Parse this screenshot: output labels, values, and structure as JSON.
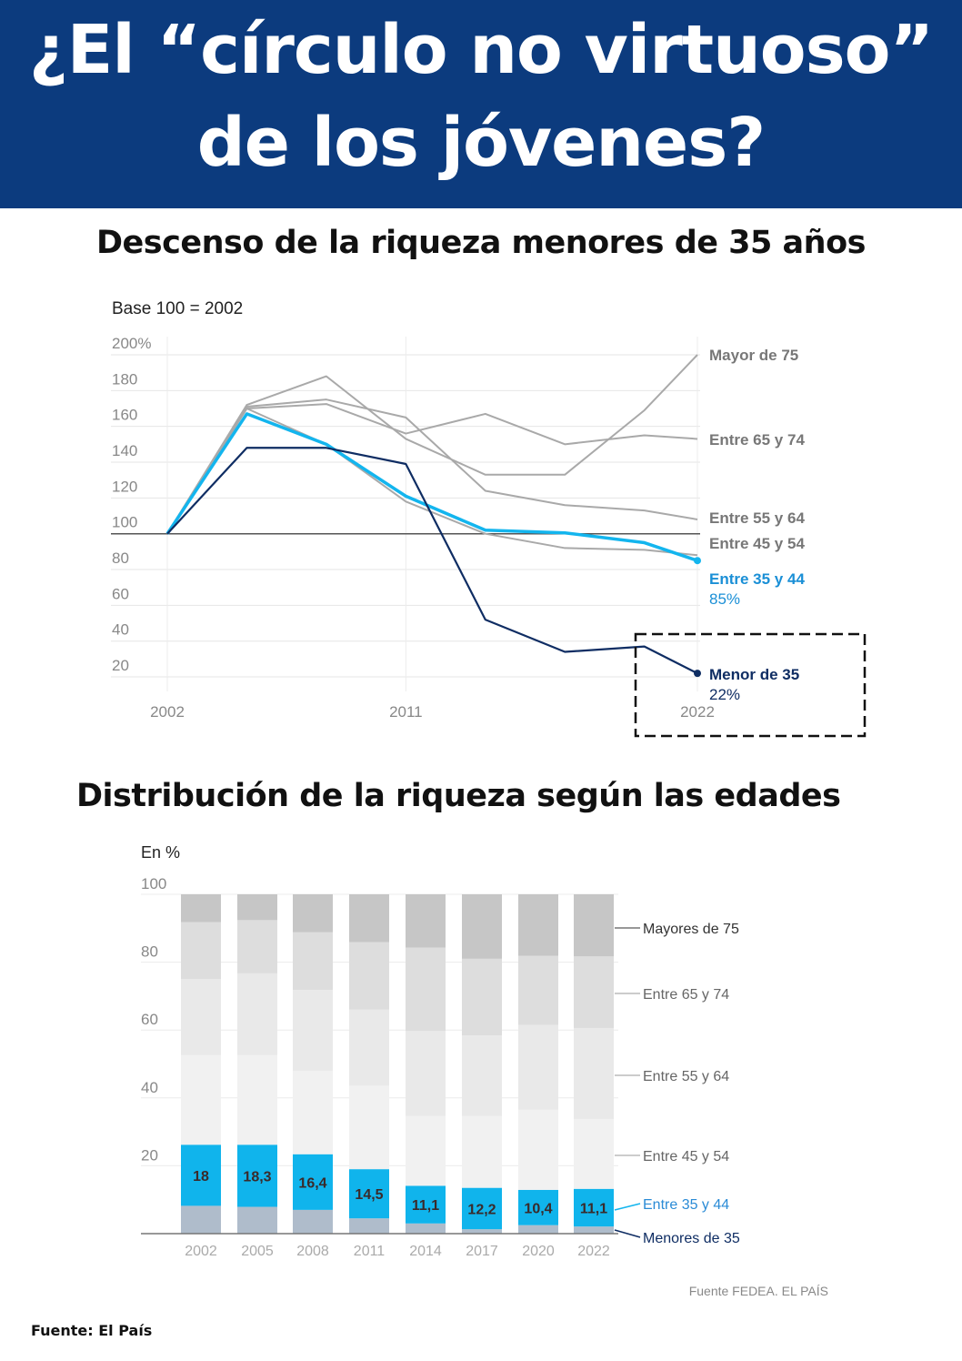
{
  "header": {
    "line1": "¿El “círculo no virtuoso”",
    "line2": "de los jóvenes?",
    "bg_color": "#0c3b7e"
  },
  "footer": {
    "source": "Fuente: El País"
  },
  "chart_data": [
    {
      "type": "line",
      "title": "Descenso de la riqueza menores de 35 años",
      "subtitle": "Base 100 = 2002",
      "x": [
        2002,
        2005,
        2008,
        2011,
        2014,
        2017,
        2020,
        2022
      ],
      "x_tick_labels": [
        "2002",
        "2011",
        "2022"
      ],
      "x_ticks": [
        2002,
        2011,
        2022
      ],
      "y_tick_labels": [
        "200%",
        "180",
        "160",
        "140",
        "120",
        "100",
        "80",
        "60",
        "40",
        "20"
      ],
      "y_ticks": [
        200,
        180,
        160,
        140,
        120,
        100,
        80,
        60,
        40,
        20
      ],
      "ylim": [
        10,
        205
      ],
      "baseline": 100,
      "grid": true,
      "series": [
        {
          "name": "Mayor de 75",
          "color": "#a9a9a9",
          "label_color": "#777777",
          "values": [
            100,
            172,
            188,
            153,
            133,
            133,
            169,
            200
          ]
        },
        {
          "name": "Entre 65 y 74",
          "color": "#a9a9a9",
          "label_color": "#777777",
          "values": [
            100,
            170,
            172.5,
            156,
            167,
            150,
            155,
            153
          ]
        },
        {
          "name": "Entre 55 y 64",
          "color": "#a9a9a9",
          "label_color": "#777777",
          "values": [
            100,
            171,
            175,
            165,
            124,
            116,
            113,
            108
          ]
        },
        {
          "name": "Entre 45 y 54",
          "color": "#a9a9a9",
          "label_color": "#777777",
          "values": [
            100,
            170,
            150,
            118,
            100,
            92,
            91,
            88
          ]
        },
        {
          "name": "Entre 35 y 44",
          "color": "#13b5ee",
          "label_color": "#1a8fd6",
          "end_label": "85%",
          "values": [
            100,
            167,
            150,
            121,
            102,
            100.5,
            95,
            85
          ]
        },
        {
          "name": "Menor de 35",
          "color": "#0f2d63",
          "label_color": "#0f2d63",
          "end_label": "22%",
          "values": [
            100,
            148,
            148,
            139,
            52,
            34,
            37,
            22
          ]
        }
      ],
      "annotation": "dashed box highlighting Menor de 35 in 2022"
    },
    {
      "type": "bar",
      "stacked": true,
      "title": "Distribución de la riqueza según las edades",
      "subtitle": "En %",
      "source": "Fuente FEDEA. EL PAÍS",
      "categories": [
        "2002",
        "2005",
        "2008",
        "2011",
        "2014",
        "2017",
        "2020",
        "2022"
      ],
      "y_tick_labels": [
        "100",
        "80",
        "60",
        "40",
        "20"
      ],
      "y_ticks": [
        100,
        80,
        60,
        40,
        20
      ],
      "ylim": [
        0,
        100
      ],
      "series": [
        {
          "name": "Menores de 35",
          "color": "#afbccb",
          "label_color": "#0f2d63",
          "values": [
            8.2,
            7.9,
            7.0,
            4.5,
            3.0,
            1.3,
            2.5,
            2.1
          ]
        },
        {
          "name": "Entre 35 y 44",
          "color": "#10b4ec",
          "label_color": "#2a8bd6",
          "values": [
            18,
            18.3,
            16.4,
            14.5,
            11.1,
            12.2,
            10.4,
            11.1
          ],
          "data_labels": [
            "18",
            "18,3",
            "16,4",
            "14,5",
            "11,1",
            "12,2",
            "10,4",
            "11,1"
          ]
        },
        {
          "name": "Entre 45 y 54",
          "color": "#f1f1f1",
          "label_color": "#666666",
          "values": [
            26.4,
            26.4,
            24.6,
            24.6,
            20.6,
            21.2,
            23.6,
            20.6
          ]
        },
        {
          "name": "Entre 55 y 64",
          "color": "#e9e9e9",
          "label_color": "#666666",
          "values": [
            22.4,
            24.1,
            23.8,
            22.4,
            25.0,
            23.7,
            25.0,
            26.8
          ]
        },
        {
          "name": "Entre 65 y 74",
          "color": "#dddddd",
          "label_color": "#666666",
          "values": [
            16.8,
            15.7,
            17.0,
            19.9,
            24.6,
            22.6,
            20.4,
            21.1
          ]
        },
        {
          "name": "Mayores de 75",
          "color": "#c6c6c6",
          "label_color": "#333333",
          "values": [
            8.2,
            7.6,
            11.2,
            14.1,
            15.7,
            19.0,
            18.1,
            18.3
          ]
        }
      ]
    }
  ]
}
